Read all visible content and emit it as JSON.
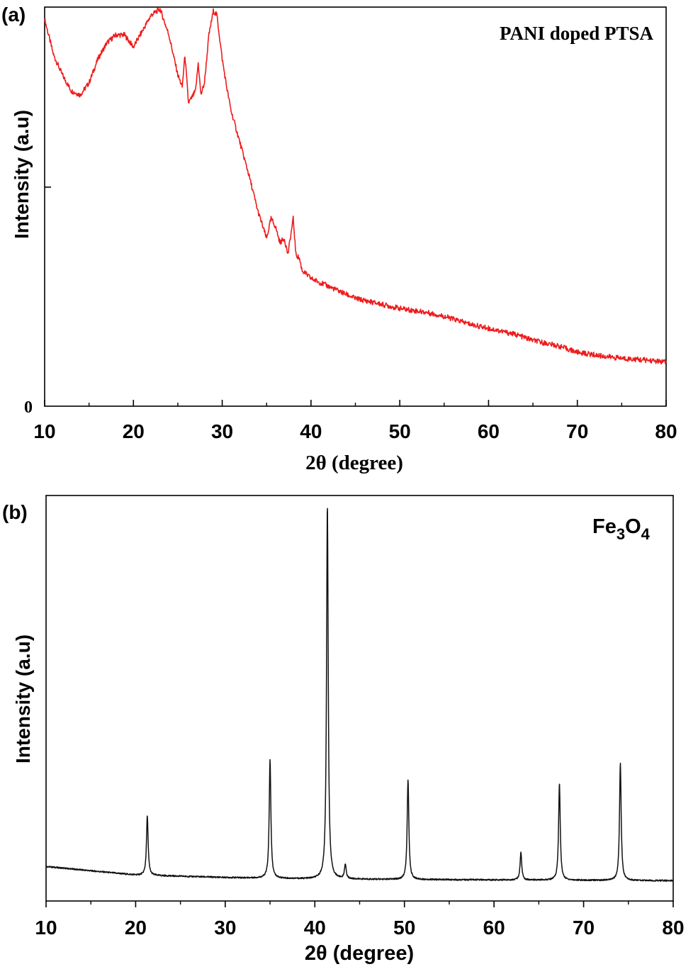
{
  "chart_data": [
    {
      "type": "line",
      "panel_label": "(a)",
      "annotation": "PANI doped PTSA",
      "xlabel": "2θ (degree)",
      "ylabel": "Intensity (a.u)",
      "xlim": [
        10,
        80
      ],
      "ylim": [
        0,
        100
      ],
      "x_ticks": [
        "10",
        "20",
        "30",
        "40",
        "50",
        "60",
        "70",
        "80"
      ],
      "y_tick_label": "0",
      "color": "#ee1c1c",
      "series": [
        {
          "x": [
            10,
            11,
            12,
            13,
            14,
            15,
            16,
            17,
            18,
            19,
            20,
            21,
            22,
            23,
            24,
            25,
            25.5,
            25.8,
            26.2,
            26.5,
            27,
            27.3,
            27.6,
            28,
            28.5,
            29,
            29.4,
            30,
            30.5,
            31,
            32,
            33,
            34,
            35,
            35.5,
            36,
            36.5,
            37,
            37.4,
            38,
            38.3,
            38.7,
            39,
            40,
            42,
            45,
            48,
            50,
            53,
            55,
            58,
            60,
            63,
            65,
            68,
            70,
            73,
            75,
            78,
            80
          ],
          "y": [
            97,
            88,
            83,
            79,
            78,
            81,
            87,
            91,
            93,
            93,
            90,
            94,
            98,
            99.5,
            93,
            83,
            80,
            88,
            76,
            77,
            79,
            86,
            78,
            81,
            93,
            99,
            98,
            87,
            80,
            74,
            66,
            58,
            49,
            42,
            47,
            45,
            41,
            42,
            38,
            47,
            38,
            37,
            34,
            32,
            30,
            27,
            25.5,
            24.5,
            23.5,
            22.5,
            20.5,
            19.5,
            18,
            16.5,
            15,
            13.5,
            12.5,
            12,
            11.5,
            11
          ]
        }
      ]
    },
    {
      "type": "line",
      "panel_label": "(b)",
      "annotation": "Fe3O4",
      "annotation_parts": {
        "fe": "Fe",
        "sub3": "3",
        "o": "O",
        "sub4": "4"
      },
      "xlabel": "2θ (degree)",
      "ylabel": "Intensity (a.u)",
      "xlim": [
        10,
        80
      ],
      "ylim": [
        0,
        100
      ],
      "x_ticks": [
        "10",
        "20",
        "30",
        "40",
        "50",
        "60",
        "70",
        "80"
      ],
      "color": "#111111",
      "baseline": [
        [
          10,
          8.5
        ],
        [
          20,
          6.4
        ],
        [
          30,
          5.8
        ],
        [
          40,
          5.4
        ],
        [
          50,
          5.3
        ],
        [
          60,
          5.2
        ],
        [
          70,
          5.1
        ],
        [
          80,
          5
        ]
      ],
      "peaks": [
        {
          "x": 21.3,
          "y": 21
        },
        {
          "x": 35.0,
          "y": 35
        },
        {
          "x": 41.4,
          "y": 98
        },
        {
          "x": 43.4,
          "y": 9
        },
        {
          "x": 50.4,
          "y": 30
        },
        {
          "x": 63.0,
          "y": 12
        },
        {
          "x": 67.3,
          "y": 29
        },
        {
          "x": 74.1,
          "y": 34
        }
      ]
    }
  ]
}
